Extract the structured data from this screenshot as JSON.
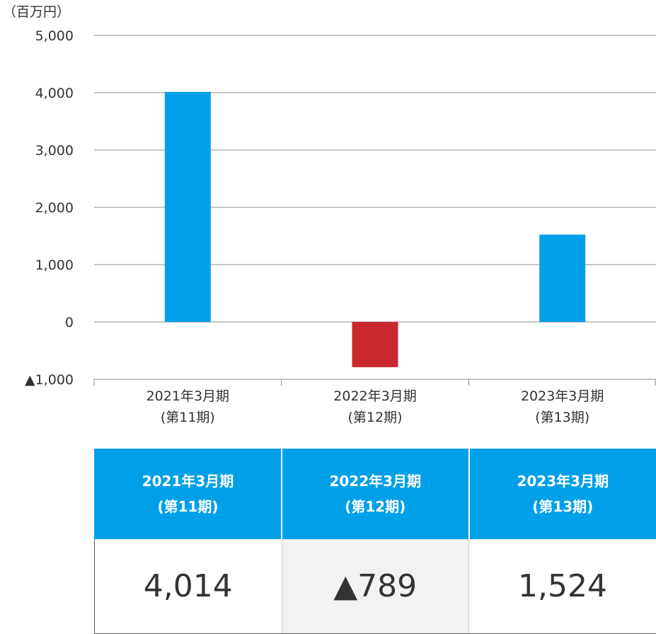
{
  "chart_data": {
    "type": "bar",
    "unit_label": "（百万円）",
    "categories": [
      {
        "line1": "2021年3月期",
        "line2": "(第11期)"
      },
      {
        "line1": "2022年3月期",
        "line2": "(第12期)"
      },
      {
        "line1": "2023年3月期",
        "line2": "(第13期)"
      }
    ],
    "values": [
      4014,
      -789,
      1524
    ],
    "ylim": [
      -1000,
      5000
    ],
    "yticks": [
      5000,
      4000,
      3000,
      2000,
      1000,
      0,
      -1000
    ],
    "ytick_labels": [
      "5,000",
      "4,000",
      "3,000",
      "2,000",
      "1,000",
      "0",
      "▲1,000"
    ],
    "grid": true,
    "colors": {
      "positive": "#00a0e8",
      "negative": "#c8282e",
      "grid": "#8c8c8c"
    }
  },
  "table": {
    "headers": [
      {
        "line1": "2021年3月期",
        "line2": "(第11期)"
      },
      {
        "line1": "2022年3月期",
        "line2": "(第12期)"
      },
      {
        "line1": "2023年3月期",
        "line2": "(第13期)"
      }
    ],
    "values": [
      "4,014",
      "▲789",
      "1,524"
    ]
  }
}
